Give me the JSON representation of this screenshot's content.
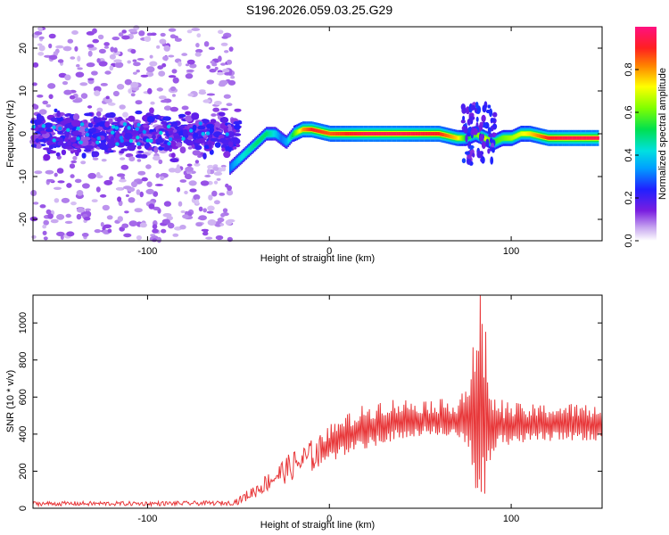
{
  "title": "S196.2026.059.03.25.G29",
  "chart_data": [
    {
      "type": "heatmap",
      "name": "spectrogram",
      "xlabel": "Height of straight line (km)",
      "ylabel": "Frequency (Hz)",
      "xlim": [
        -163,
        150
      ],
      "ylim": [
        -25,
        25
      ],
      "xticks": [
        -100,
        0,
        100
      ],
      "xtick_labels": [
        "-100",
        "0",
        "100"
      ],
      "yticks": [
        -20,
        -10,
        0,
        10,
        20
      ],
      "ytick_labels": [
        "-20",
        "-10",
        "0",
        "10",
        "20"
      ],
      "colorbar": {
        "label": "Normalized spectral amplitude",
        "range": [
          0,
          1
        ],
        "ticks": [
          0.0,
          0.2,
          0.4,
          0.6,
          0.8
        ],
        "tick_labels": [
          "0.0",
          "0.2",
          "0.4",
          "0.6",
          "0.8"
        ]
      },
      "ridge": {
        "description": "Dominant frequency track vs height",
        "x": [
          -55,
          -50,
          -45,
          -40,
          -35,
          -30,
          -27,
          -24,
          -20,
          -15,
          -10,
          0,
          20,
          40,
          60,
          70,
          75,
          80,
          85,
          90,
          95,
          100,
          105,
          110,
          120,
          130,
          140,
          148
        ],
        "freq": [
          -8,
          -6,
          -4,
          -2,
          0,
          0,
          -1,
          -2,
          0,
          1,
          1,
          0,
          0,
          0,
          0,
          -1,
          -1,
          0,
          -1,
          -2,
          -1,
          -1,
          0,
          0,
          -1,
          -1,
          -1,
          -1
        ],
        "amplitude": [
          0.3,
          0.4,
          0.45,
          0.5,
          0.5,
          0.4,
          0.3,
          0.35,
          0.55,
          0.8,
          0.9,
          0.85,
          0.95,
          0.95,
          0.9,
          0.75,
          0.5,
          0.6,
          0.7,
          0.55,
          0.6,
          0.65,
          0.7,
          0.75,
          0.9,
          0.95,
          0.95,
          0.95
        ]
      },
      "noise_region": {
        "x_range": [
          -163,
          -53
        ],
        "freq_range": [
          -25,
          25
        ],
        "band_freq_range": [
          -5,
          5
        ]
      }
    },
    {
      "type": "line",
      "name": "snr",
      "xlabel": "Height of straight line (km)",
      "ylabel": "SNR (10 * v/v)",
      "xlim": [
        -163,
        150
      ],
      "ylim": [
        0,
        1150
      ],
      "xticks": [
        -100,
        0,
        100
      ],
      "xtick_labels": [
        "-100",
        "0",
        "100"
      ],
      "yticks": [
        0,
        200,
        400,
        600,
        800,
        1000
      ],
      "ytick_labels": [
        "0",
        "200",
        "400",
        "600",
        "800",
        "1000"
      ],
      "color": "#e8383a",
      "envelope": {
        "x": [
          -163,
          -100,
          -55,
          -50,
          -40,
          -30,
          -20,
          -10,
          0,
          10,
          20,
          30,
          40,
          50,
          60,
          70,
          75,
          80,
          85,
          88,
          90,
          100,
          110,
          120,
          130,
          140,
          150
        ],
        "mean": [
          25,
          25,
          28,
          40,
          100,
          170,
          230,
          280,
          330,
          380,
          420,
          450,
          460,
          470,
          470,
          470,
          460,
          450,
          450,
          420,
          430,
          440,
          440,
          445,
          450,
          445,
          440
        ],
        "amplitude": [
          12,
          12,
          12,
          20,
          40,
          60,
          80,
          90,
          100,
          110,
          120,
          120,
          110,
          100,
          100,
          100,
          200,
          400,
          500,
          300,
          150,
          110,
          100,
          100,
          100,
          100,
          100
        ]
      },
      "peak": {
        "x": 83,
        "y": 1150
      }
    }
  ]
}
